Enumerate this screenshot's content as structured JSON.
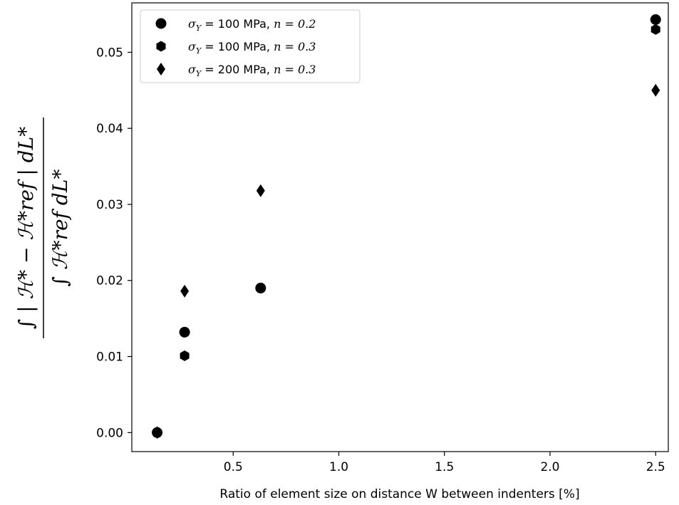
{
  "chart_data": {
    "type": "scatter",
    "title": "",
    "xlabel": "Ratio of element size on distance W between indenters [%]",
    "ylabel": {
      "numerator": "∫ | ℋ* − ℋ*ref | dL*",
      "denominator": "∫ ℋ*ref dL*"
    },
    "xlim": [
      0.02,
      2.56
    ],
    "ylim": [
      -0.0025,
      0.0565
    ],
    "xticks": [
      0.5,
      1.0,
      1.5,
      2.0,
      2.5
    ],
    "xtick_labels": [
      "0.5",
      "1.0",
      "1.5",
      "2.0",
      "2.5"
    ],
    "yticks": [
      0.0,
      0.01,
      0.02,
      0.03,
      0.04,
      0.05
    ],
    "ytick_labels": [
      "0.00",
      "0.01",
      "0.02",
      "0.03",
      "0.04",
      "0.05"
    ],
    "grid": false,
    "legend_position": "top-left",
    "series": [
      {
        "name": "σY = 100 MPa,  n = 0.2",
        "label_parts": {
          "sym": "σ",
          "sub": "Y",
          "mid": " = 100 MPa,  ",
          "n": "n = 0.2"
        },
        "marker": "circle",
        "color": "#000000",
        "x": [
          0.14,
          0.27,
          0.63,
          2.5
        ],
        "y": [
          0.0,
          0.0132,
          0.019,
          0.0543
        ]
      },
      {
        "name": "σY = 100 MPa,  n = 0.3",
        "label_parts": {
          "sym": "σ",
          "sub": "Y",
          "mid": " = 100 MPa,  ",
          "n": "n = 0.3"
        },
        "marker": "hexagon",
        "color": "#000000",
        "x": [
          0.14,
          0.27,
          0.63,
          2.5
        ],
        "y": [
          0.0,
          0.0101,
          0.019,
          0.053
        ]
      },
      {
        "name": "σY = 200 MPa,  n = 0.3",
        "label_parts": {
          "sym": "σ",
          "sub": "Y",
          "mid": " = 200 MPa,  ",
          "n": "n = 0.3"
        },
        "marker": "diamond",
        "color": "#000000",
        "x": [
          0.14,
          0.27,
          0.63,
          2.5
        ],
        "y": [
          0.0,
          0.0186,
          0.0318,
          0.045
        ]
      }
    ]
  }
}
